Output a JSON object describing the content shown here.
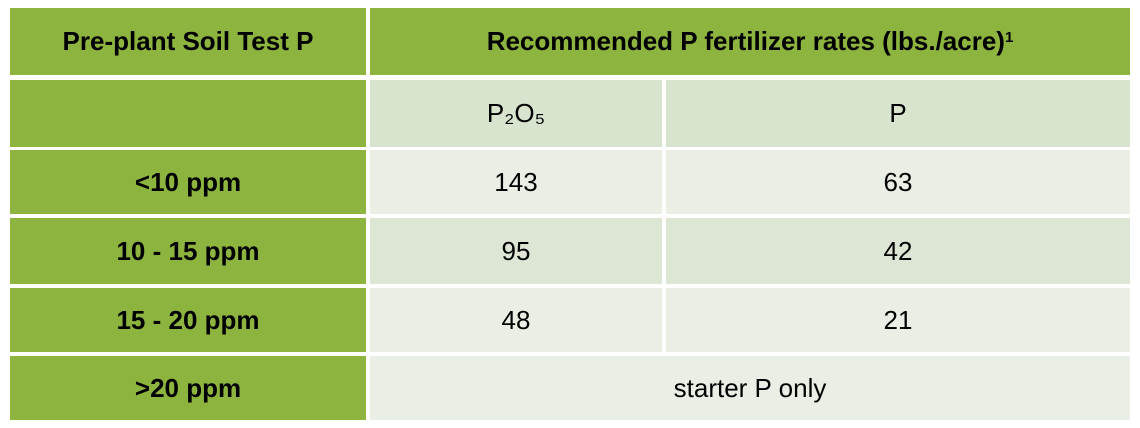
{
  "table": {
    "header": {
      "first": "Pre-plant Soil Test P",
      "second": "Recommended P fertilizer rates (lbs./acre)",
      "footnote_marker": "1"
    },
    "subheader": [
      "P₂O₅",
      "P"
    ],
    "rows": [
      [
        "<10 ppm",
        143,
        63
      ],
      [
        "10 - 15 ppm",
        95,
        42
      ],
      [
        "15 - 20 ppm",
        48,
        21
      ],
      [
        ">20 ppm",
        "starter P only"
      ]
    ]
  }
}
